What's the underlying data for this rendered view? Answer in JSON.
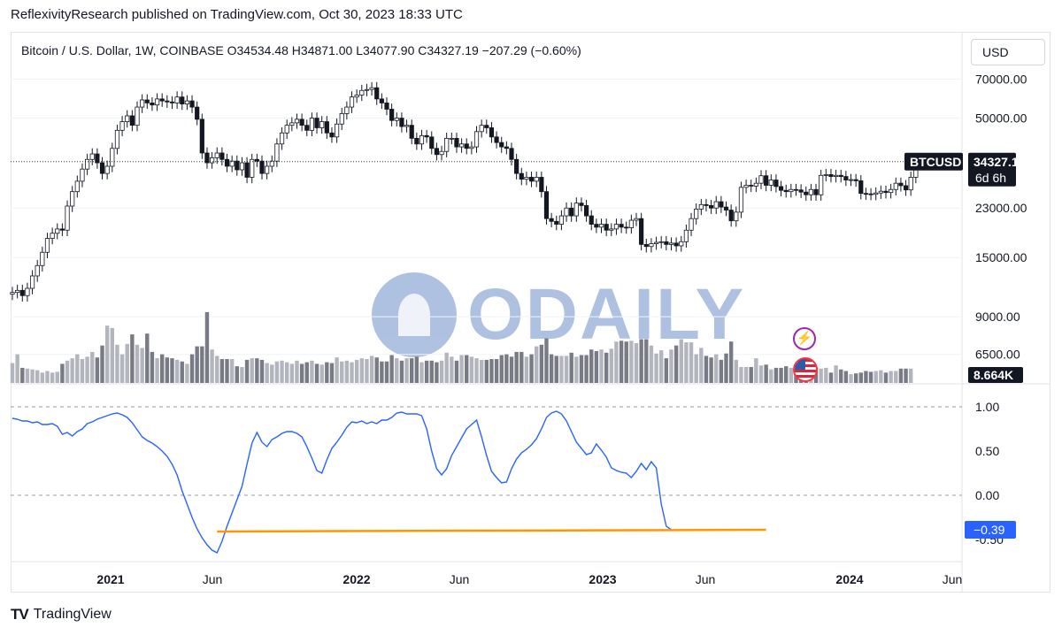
{
  "header": {
    "text": "ReflexivityResearch published on TradingView.com, Oct 30, 2023 18:33 UTC"
  },
  "symbol_bar": {
    "title": "Bitcoin / U.S. Dollar, 1W, COINBASE  O34534.48  H34871.00  L34077.90  C34327.19  −207.29 (−0.60%)"
  },
  "currency_button": "USD",
  "price_axis": {
    "ticks": [
      "70000.00",
      "50000.00",
      "23000.00",
      "15000.00",
      "9000.00",
      "6500.00"
    ],
    "tick_values": [
      70000,
      50000,
      23000,
      15000,
      9000,
      6500
    ],
    "symbol_label": "BTCUSD",
    "last_price": "34327.19",
    "countdown": "6d 6h",
    "volume_label": "8.664K",
    "scale": "log"
  },
  "indicator_axis": {
    "ticks": [
      "1.00",
      "0.50",
      "0.00",
      "-0.50"
    ],
    "tick_values": [
      1.0,
      0.5,
      0.0,
      -0.5
    ],
    "current_label": "−0.39",
    "current_value": -0.39
  },
  "time_axis": {
    "labels": [
      "2021",
      "Jun",
      "2022",
      "Jun",
      "2023",
      "Jun",
      "2024",
      "Jun"
    ]
  },
  "watermark": "ODAILY",
  "footer": {
    "logo_text": "TV",
    "brand": "TradingView"
  },
  "colors": {
    "up": "#ffffff",
    "down": "#131722",
    "candle_border": "#131722",
    "indicator_line": "#2962ff",
    "support_line": "#ff9800",
    "volume_light": "#b2b5be",
    "volume_dark": "#787b86",
    "label_bg": "#131722",
    "indicator_label_bg": "#2962ff"
  },
  "chart_data": [
    {
      "type": "candlestick",
      "title": "Bitcoin / U.S. Dollar, 1W, COINBASE",
      "y_scale": "log",
      "ylim": [
        7500,
        80000
      ],
      "x_range": [
        "2020-10-05",
        "2024-07-15"
      ],
      "x_labels": [
        "2021",
        "Jun",
        "2022",
        "Jun",
        "2023",
        "Jun",
        "2024",
        "Jun"
      ],
      "weekly_close": [
        11100,
        11300,
        10800,
        11500,
        12800,
        14000,
        15700,
        17700,
        18500,
        19200,
        19000,
        23400,
        26500,
        29000,
        32200,
        35000,
        36700,
        34000,
        31000,
        33000,
        38500,
        45000,
        48500,
        51000,
        47000,
        55000,
        58500,
        57000,
        56000,
        59000,
        58000,
        57500,
        57000,
        60000,
        56500,
        58000,
        55000,
        49500,
        37000,
        34000,
        35500,
        37000,
        35000,
        33000,
        34500,
        32000,
        34000,
        30000,
        35000,
        34500,
        31000,
        33000,
        34500,
        40000,
        44000,
        47000,
        48000,
        49500,
        47000,
        45000,
        50000,
        46000,
        48500,
        44000,
        42500,
        47500,
        52000,
        55000,
        60000,
        61000,
        63500,
        64000,
        65000,
        59000,
        57000,
        54000,
        49000,
        50000,
        46500,
        47000,
        42000,
        40000,
        43000,
        42500,
        38500,
        36500,
        37500,
        42000,
        42000,
        39000,
        40000,
        38500,
        39000,
        44500,
        47000,
        46000,
        42500,
        40500,
        39000,
        38500,
        35000,
        31000,
        29500,
        30000,
        29000,
        30000,
        26500,
        21000,
        20500,
        20000,
        21500,
        23000,
        21500,
        24000,
        23500,
        21500,
        20000,
        19500,
        20000,
        19000,
        19200,
        20000,
        19500,
        19400,
        20700,
        21000,
        16800,
        16500,
        16900,
        17100,
        17200,
        16800,
        17000,
        16600,
        17200,
        19000,
        21000,
        22800,
        23700,
        23500,
        23000,
        24300,
        23200,
        22600,
        20600,
        22200,
        27500,
        28000,
        27800,
        28500,
        30400,
        28000,
        29300,
        27700,
        26800,
        26500,
        27000,
        26900,
        26400,
        25800,
        27000,
        25800,
        30500,
        30700,
        30200,
        30500,
        30200,
        29300,
        29400,
        29100,
        26100,
        26000,
        25900,
        26200,
        26600,
        26300,
        27000,
        28500,
        27900,
        26900,
        30000,
        34300
      ]
    },
    {
      "type": "bar",
      "title": "Volume",
      "values_relative": [
        0.25,
        0.36,
        0.19,
        0.18,
        0.17,
        0.16,
        0.13,
        0.15,
        0.13,
        0.14,
        0.24,
        0.28,
        0.31,
        0.36,
        0.3,
        0.33,
        0.39,
        0.32,
        0.47,
        0.72,
        0.69,
        0.48,
        0.36,
        0.49,
        0.61,
        0.48,
        0.44,
        0.62,
        0.39,
        0.31,
        0.36,
        0.32,
        0.31,
        0.29,
        0.27,
        0.24,
        0.36,
        0.46,
        0.46,
        0.89,
        0.42,
        0.34,
        0.3,
        0.3,
        0.3,
        0.21,
        0.2,
        0.29,
        0.31,
        0.31,
        0.29,
        0.25,
        0.23,
        0.27,
        0.28,
        0.26,
        0.24,
        0.28,
        0.24,
        0.26,
        0.28,
        0.24,
        0.23,
        0.26,
        0.25,
        0.32,
        0.27,
        0.28,
        0.26,
        0.29,
        0.31,
        0.3,
        0.34,
        0.32,
        0.27,
        0.27,
        0.35,
        0.31,
        0.28,
        0.31,
        0.31,
        0.33,
        0.26,
        0.28,
        0.28,
        0.26,
        0.28,
        0.38,
        0.33,
        0.28,
        0.35,
        0.35,
        0.33,
        0.31,
        0.29,
        0.29,
        0.3,
        0.3,
        0.35,
        0.36,
        0.33,
        0.39,
        0.39,
        0.33,
        0.36,
        0.46,
        0.48,
        0.56,
        0.36,
        0.34,
        0.34,
        0.34,
        0.38,
        0.33,
        0.35,
        0.35,
        0.42,
        0.4,
        0.42,
        0.38,
        0.43,
        0.52,
        0.53,
        0.52,
        0.53,
        0.5,
        0.55,
        0.55,
        0.47,
        0.37,
        0.41,
        0.31,
        0.42,
        0.47,
        0.55,
        0.51,
        0.51,
        0.36,
        0.44,
        0.34,
        0.32,
        0.36,
        0.29,
        0.37,
        0.52,
        0.29,
        0.2,
        0.2,
        0.2,
        0.31,
        0.22,
        0.23,
        0.17,
        0.19,
        0.19,
        0.21,
        0.19,
        0.19,
        0.17,
        0.2,
        0.21,
        0.19,
        0.18,
        0.19,
        0.13,
        0.22,
        0.17,
        0.15,
        0.11,
        0.12,
        0.13,
        0.15,
        0.14,
        0.15,
        0.16,
        0.13,
        0.15,
        0.15,
        0.18,
        0.18,
        0.18
      ],
      "last_value": "8.664K"
    },
    {
      "type": "line",
      "title": "Indicator",
      "ylim": [
        -0.7,
        1.1
      ],
      "values": [
        0.87,
        0.86,
        0.84,
        0.84,
        0.82,
        0.83,
        0.8,
        0.8,
        0.81,
        0.78,
        0.69,
        0.71,
        0.67,
        0.72,
        0.75,
        0.81,
        0.83,
        0.86,
        0.88,
        0.9,
        0.92,
        0.93,
        0.91,
        0.88,
        0.82,
        0.74,
        0.66,
        0.62,
        0.59,
        0.55,
        0.5,
        0.44,
        0.35,
        0.23,
        0.05,
        -0.1,
        -0.25,
        -0.38,
        -0.48,
        -0.56,
        -0.62,
        -0.65,
        -0.52,
        -0.35,
        -0.2,
        -0.05,
        0.1,
        0.35,
        0.59,
        0.71,
        0.6,
        0.55,
        0.63,
        0.66,
        0.7,
        0.72,
        0.72,
        0.7,
        0.66,
        0.55,
        0.42,
        0.28,
        0.25,
        0.4,
        0.53,
        0.6,
        0.68,
        0.77,
        0.83,
        0.82,
        0.84,
        0.81,
        0.83,
        0.81,
        0.85,
        0.85,
        0.88,
        0.93,
        0.94,
        0.92,
        0.92,
        0.92,
        0.9,
        0.75,
        0.5,
        0.3,
        0.23,
        0.3,
        0.45,
        0.55,
        0.65,
        0.75,
        0.8,
        0.85,
        0.66,
        0.45,
        0.27,
        0.2,
        0.14,
        0.15,
        0.3,
        0.41,
        0.48,
        0.52,
        0.57,
        0.64,
        0.75,
        0.88,
        0.93,
        0.95,
        0.92,
        0.84,
        0.72,
        0.6,
        0.53,
        0.46,
        0.48,
        0.58,
        0.51,
        0.43,
        0.31,
        0.28,
        0.26,
        0.25,
        0.2,
        0.27,
        0.36,
        0.29,
        0.38,
        0.31,
        -0.1,
        -0.35,
        -0.39
      ],
      "hlines": [
        1.0,
        0.0
      ],
      "support_line": {
        "from_index": 41,
        "y_start": -0.41,
        "to_index": 151,
        "y_end": -0.39
      },
      "last_value": -0.39
    }
  ]
}
